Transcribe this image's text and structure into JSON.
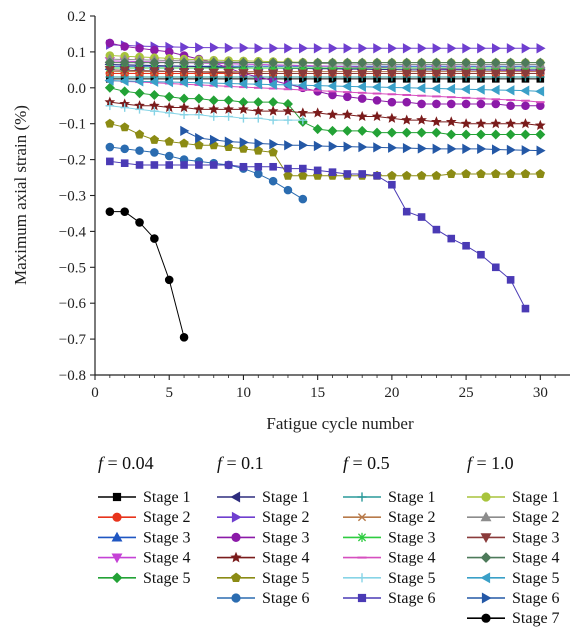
{
  "chart_data": {
    "type": "line",
    "xlabel": "Fatigue cycle number",
    "ylabel": "Maximum axial strain (%)",
    "xlim": [
      0,
      32
    ],
    "ylim": [
      -0.8,
      0.2
    ],
    "x_ticks": [
      0,
      5,
      10,
      15,
      20,
      25,
      30
    ],
    "y_ticks": [
      0.2,
      0.1,
      0.0,
      -0.1,
      -0.2,
      -0.3,
      -0.4,
      -0.5,
      -0.6,
      -0.7,
      -0.8
    ],
    "y_tick_labels": [
      "0.2",
      "0.1",
      "0.0",
      "−0.1",
      "−0.2",
      "−0.3",
      "−0.4",
      "−0.5",
      "−0.6",
      "−0.7",
      "−0.8"
    ],
    "grid": false,
    "legend_placement": "bottom",
    "groups": [
      {
        "label": "f = 0.04",
        "series": [
          {
            "name": "Stage 1",
            "marker": "square",
            "color": "#000000",
            "start": 1,
            "values": [
              0.025,
              0.025,
              0.025,
              0.025,
              0.025,
              0.025,
              0.025,
              0.025,
              0.025,
              0.025,
              0.025,
              0.025,
              0.025,
              0.025,
              0.025,
              0.025,
              0.025,
              0.025,
              0.025,
              0.025,
              0.025,
              0.025,
              0.025,
              0.025,
              0.025,
              0.025,
              0.025,
              0.025,
              0.025,
              0.025
            ]
          },
          {
            "name": "Stage 2",
            "marker": "circle",
            "color": "#e8341c",
            "start": 1,
            "values": [
              0.04,
              0.04,
              0.04,
              0.04,
              0.04,
              0.04,
              0.04,
              0.04,
              0.04,
              0.04,
              0.04,
              0.04,
              0.04,
              0.04,
              0.04,
              0.04,
              0.04,
              0.04,
              0.04,
              0.04,
              0.04,
              0.04,
              0.04,
              0.04,
              0.04,
              0.04,
              0.04,
              0.04,
              0.04,
              0.04
            ]
          },
          {
            "name": "Stage 3",
            "marker": "triangle-up",
            "color": "#1f56c2",
            "start": 1,
            "values": [
              0.06,
              0.06,
              0.06,
              0.06,
              0.06,
              0.06,
              0.06,
              0.06,
              0.06,
              0.06,
              0.06,
              0.06,
              0.06,
              0.06,
              0.06,
              0.06,
              0.06,
              0.06,
              0.06,
              0.06,
              0.06,
              0.06,
              0.06,
              0.06,
              0.06,
              0.06,
              0.06,
              0.06,
              0.06,
              0.06
            ]
          },
          {
            "name": "Stage 4",
            "marker": "triangle-down",
            "color": "#c542d6",
            "start": 1,
            "values": [
              0.075,
              0.074,
              0.073,
              0.072,
              0.071,
              0.07,
              0.069,
              0.068,
              0.067,
              0.066,
              0.065,
              0.064,
              0.063,
              0.062,
              0.061,
              0.06,
              0.059,
              0.058,
              0.057,
              0.056,
              0.055,
              0.054,
              0.053,
              0.052,
              0.051,
              0.05,
              0.049,
              0.048,
              0.047,
              0.046
            ]
          },
          {
            "name": "Stage 5",
            "marker": "diamond",
            "color": "#23a236",
            "start": 1,
            "values": [
              0.0,
              -0.01,
              -0.015,
              -0.02,
              -0.025,
              -0.03,
              -0.03,
              -0.035,
              -0.035,
              -0.04,
              -0.04,
              -0.04,
              -0.045,
              -0.095,
              -0.115,
              -0.12,
              -0.12,
              -0.12,
              -0.125,
              -0.125,
              -0.125,
              -0.125,
              -0.125,
              -0.13,
              -0.13,
              -0.13,
              -0.13,
              -0.13,
              -0.13,
              -0.13
            ]
          }
        ]
      },
      {
        "label": "f = 0.1",
        "series": [
          {
            "name": "Stage 1",
            "marker": "triangle-left",
            "color": "#2e2d7e",
            "start": 1,
            "values": [
              0.065,
              0.064,
              0.063,
              0.062,
              0.061,
              0.06,
              0.059,
              0.058,
              0.057,
              0.056,
              0.055,
              0.055,
              0.054,
              0.054,
              0.053,
              0.053,
              0.052,
              0.052,
              0.051,
              0.051,
              0.05,
              0.05,
              0.05,
              0.05,
              0.05,
              0.05,
              0.05,
              0.05,
              0.05,
              0.05
            ]
          },
          {
            "name": "Stage 2",
            "marker": "triangle-right",
            "color": "#6f3fcf",
            "start": 1,
            "values": [
              0.12,
              0.118,
              0.116,
              0.115,
              0.114,
              0.113,
              0.112,
              0.112,
              0.111,
              0.111,
              0.11,
              0.11,
              0.11,
              0.11,
              0.11,
              0.11,
              0.11,
              0.11,
              0.11,
              0.11,
              0.11,
              0.11,
              0.11,
              0.11,
              0.11,
              0.11,
              0.11,
              0.11,
              0.11,
              0.11
            ]
          },
          {
            "name": "Stage 3",
            "marker": "circle",
            "color": "#8b1aa8",
            "start": 1,
            "values": [
              0.125,
              0.115,
              0.11,
              0.105,
              0.1,
              0.09,
              0.08,
              0.07,
              0.055,
              0.04,
              0.03,
              0.02,
              0.01,
              0.0,
              -0.01,
              -0.02,
              -0.025,
              -0.03,
              -0.035,
              -0.04,
              -0.04,
              -0.045,
              -0.045,
              -0.045,
              -0.045,
              -0.045,
              -0.045,
              -0.05,
              -0.05,
              -0.05
            ]
          },
          {
            "name": "Stage 4",
            "marker": "star",
            "color": "#7a1c1c",
            "start": 1,
            "values": [
              -0.04,
              -0.045,
              -0.05,
              -0.05,
              -0.055,
              -0.055,
              -0.06,
              -0.06,
              -0.06,
              -0.06,
              -0.065,
              -0.065,
              -0.065,
              -0.07,
              -0.07,
              -0.075,
              -0.075,
              -0.08,
              -0.08,
              -0.085,
              -0.09,
              -0.09,
              -0.095,
              -0.095,
              -0.1,
              -0.1,
              -0.1,
              -0.1,
              -0.1,
              -0.105
            ]
          },
          {
            "name": "Stage 5",
            "marker": "pentagon",
            "color": "#8b8b14",
            "start": 1,
            "values": [
              -0.1,
              -0.11,
              -0.13,
              -0.145,
              -0.15,
              -0.155,
              -0.16,
              -0.16,
              -0.165,
              -0.17,
              -0.175,
              -0.18,
              -0.245,
              -0.245,
              -0.245,
              -0.245,
              -0.245,
              -0.245,
              -0.245,
              -0.245,
              -0.245,
              -0.245,
              -0.245,
              -0.24,
              -0.24,
              -0.24,
              -0.24,
              -0.24,
              -0.24,
              -0.24
            ]
          },
          {
            "name": "Stage 6",
            "marker": "circle",
            "color": "#2b6cb0",
            "start": 1,
            "values": [
              -0.165,
              -0.17,
              -0.175,
              -0.18,
              -0.19,
              -0.2,
              -0.205,
              -0.21,
              -0.215,
              -0.225,
              -0.24,
              -0.26,
              -0.285,
              -0.31
            ]
          }
        ]
      },
      {
        "label": "f = 0.5",
        "series": [
          {
            "name": "Stage 1",
            "marker": "plus",
            "color": "#2a9a9a",
            "start": 1,
            "values": [
              0.03,
              0.03,
              0.03,
              0.03,
              0.03,
              0.03,
              0.03,
              0.03,
              0.03,
              0.03,
              0.03,
              0.03,
              0.03,
              0.03,
              0.03,
              0.03,
              0.03,
              0.03,
              0.03,
              0.03,
              0.03,
              0.03,
              0.03,
              0.03,
              0.03,
              0.03,
              0.03,
              0.03,
              0.03,
              0.03
            ]
          },
          {
            "name": "Stage 2",
            "marker": "x",
            "color": "#b87a4a",
            "start": 1,
            "values": [
              0.045,
              0.045,
              0.045,
              0.045,
              0.045,
              0.045,
              0.045,
              0.045,
              0.045,
              0.045,
              0.045,
              0.045,
              0.045,
              0.045,
              0.045,
              0.045,
              0.045,
              0.045,
              0.045,
              0.045,
              0.045,
              0.045,
              0.045,
              0.045,
              0.045,
              0.045,
              0.045,
              0.045,
              0.045,
              0.045
            ]
          },
          {
            "name": "Stage 3",
            "marker": "asterisk",
            "color": "#2ecc40",
            "start": 1,
            "values": [
              0.055,
              0.055,
              0.055,
              0.055,
              0.055,
              0.055,
              0.055,
              0.055,
              0.055,
              0.055,
              0.055,
              0.055,
              0.055,
              0.055,
              0.055,
              0.055,
              0.055,
              0.055,
              0.055,
              0.055,
              0.055,
              0.055,
              0.055,
              0.055,
              0.055,
              0.055,
              0.055,
              0.055,
              0.055,
              0.055
            ]
          },
          {
            "name": "Stage 4",
            "marker": "dash",
            "color": "#d64fbf",
            "start": 1,
            "values": [
              0.02,
              0.018,
              0.016,
              0.014,
              0.012,
              0.01,
              0.008,
              0.006,
              0.004,
              0.002,
              0.0,
              -0.002,
              -0.004,
              -0.006,
              -0.008,
              -0.01,
              -0.012,
              -0.014,
              -0.016,
              -0.018,
              -0.02,
              -0.022,
              -0.024,
              -0.026,
              -0.028,
              -0.03,
              -0.032,
              -0.034,
              -0.036,
              -0.04
            ]
          },
          {
            "name": "Stage 5",
            "marker": "plus",
            "color": "#87d4e6",
            "start": 1,
            "values": [
              -0.05,
              -0.055,
              -0.06,
              -0.065,
              -0.07,
              -0.075,
              -0.075,
              -0.08,
              -0.08,
              -0.085,
              -0.085,
              -0.09,
              -0.09,
              -0.09
            ]
          },
          {
            "name": "Stage 6",
            "marker": "square",
            "color": "#4a3ab5",
            "start": 1,
            "values": [
              -0.205,
              -0.21,
              -0.215,
              -0.215,
              -0.215,
              -0.215,
              -0.215,
              -0.215,
              -0.215,
              -0.22,
              -0.22,
              -0.22,
              -0.225,
              -0.225,
              -0.23,
              -0.235,
              -0.24,
              -0.24,
              -0.245,
              -0.27,
              -0.345,
              -0.36,
              -0.395,
              -0.42,
              -0.44,
              -0.465,
              -0.5,
              -0.535,
              -0.615
            ]
          }
        ]
      },
      {
        "label": "f = 1.0",
        "series": [
          {
            "name": "Stage 1",
            "marker": "circle",
            "color": "#a8c43c",
            "start": 1,
            "values": [
              0.09,
              0.088,
              0.086,
              0.084,
              0.082,
              0.08,
              0.078,
              0.077,
              0.076,
              0.075,
              0.074,
              0.073,
              0.072,
              0.071,
              0.07,
              0.07,
              0.07,
              0.07,
              0.07,
              0.07,
              0.07,
              0.07,
              0.07,
              0.07,
              0.07,
              0.07,
              0.07,
              0.07,
              0.07,
              0.07
            ]
          },
          {
            "name": "Stage 2",
            "marker": "triangle-up",
            "color": "#8c8c8c",
            "start": 1,
            "values": [
              0.08,
              0.079,
              0.078,
              0.077,
              0.076,
              0.075,
              0.074,
              0.073,
              0.072,
              0.071,
              0.07,
              0.07,
              0.07,
              0.069,
              0.068,
              0.067,
              0.066,
              0.066,
              0.065,
              0.065,
              0.065,
              0.065,
              0.065,
              0.065,
              0.065,
              0.065,
              0.065,
              0.065,
              0.065,
              0.065
            ]
          },
          {
            "name": "Stage 3",
            "marker": "triangle-down",
            "color": "#8a3b3b",
            "start": 1,
            "values": [
              0.05,
              0.049,
              0.048,
              0.047,
              0.046,
              0.045,
              0.044,
              0.043,
              0.042,
              0.041,
              0.04,
              0.04,
              0.04,
              0.04,
              0.04,
              0.04,
              0.04,
              0.04,
              0.04,
              0.04,
              0.04,
              0.04,
              0.04,
              0.04,
              0.04,
              0.04,
              0.04,
              0.04,
              0.04,
              0.04
            ]
          },
          {
            "name": "Stage 4",
            "marker": "diamond",
            "color": "#4d7a5a",
            "start": 1,
            "values": [
              0.07,
              0.07,
              0.07,
              0.07,
              0.07,
              0.07,
              0.07,
              0.07,
              0.07,
              0.07,
              0.07,
              0.07,
              0.07,
              0.07,
              0.07,
              0.07,
              0.07,
              0.07,
              0.07,
              0.07,
              0.07,
              0.07,
              0.07,
              0.07,
              0.07,
              0.07,
              0.07,
              0.07,
              0.07,
              0.07
            ]
          },
          {
            "name": "Stage 5",
            "marker": "triangle-left",
            "color": "#3aa0c8",
            "start": 1,
            "values": [
              0.02,
              0.019,
              0.018,
              0.017,
              0.016,
              0.015,
              0.014,
              0.013,
              0.012,
              0.011,
              0.01,
              0.009,
              0.008,
              0.007,
              0.006,
              0.005,
              0.004,
              0.003,
              0.002,
              0.001,
              0.0,
              -0.001,
              -0.002,
              -0.003,
              -0.004,
              -0.005,
              -0.006,
              -0.007,
              -0.008,
              -0.01
            ]
          },
          {
            "name": "Stage 6",
            "marker": "triangle-right",
            "color": "#2458a6",
            "start": 6,
            "values": [
              -0.12,
              -0.14,
              -0.145,
              -0.15,
              -0.152,
              -0.155,
              -0.157,
              -0.16,
              -0.16,
              -0.162,
              -0.163,
              -0.164,
              -0.165,
              -0.166,
              -0.167,
              -0.168,
              -0.169,
              -0.17,
              -0.17,
              -0.17,
              -0.17,
              -0.172,
              -0.173,
              -0.174,
              -0.175
            ]
          },
          {
            "name": "Stage 7",
            "marker": "circle",
            "color": "#000000",
            "start": 1,
            "values": [
              -0.345,
              -0.345,
              -0.375,
              -0.42,
              -0.535,
              -0.695
            ]
          }
        ]
      }
    ],
    "f_symbol": "f",
    "f_equals": "="
  }
}
